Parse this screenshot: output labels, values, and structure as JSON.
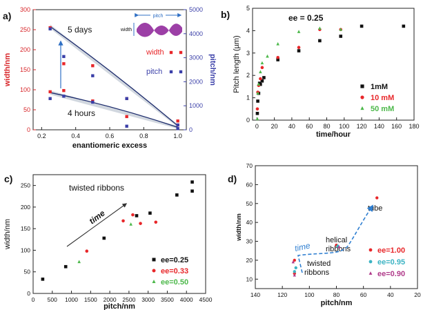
{
  "panels": [
    {
      "panel_label": "a)",
      "annotations": {
        "top_text": "5 days",
        "bottom_text": "4 hours",
        "legend_pitch": "pitch",
        "legend_width": "width"
      },
      "chart_data": {
        "type": "scatter",
        "xlabel": "enantiomeric excess",
        "ylabel": "width/nm",
        "ylabel_right": "pitch/nm",
        "xlim": [
          0.15,
          1.05
        ],
        "ylim": [
          0,
          300
        ],
        "ylim_right": [
          0,
          5000
        ],
        "xticks": [
          "0.2",
          "0.4",
          "0.6",
          "0.8",
          "1.0"
        ],
        "yticks": [
          "0",
          "50",
          "100",
          "150",
          "200",
          "250",
          "300"
        ],
        "yticks_right": [
          "0",
          "1000",
          "2000",
          "3000",
          "4000",
          "5000"
        ],
        "legend_position": "middle-right",
        "series": [
          {
            "name": "width",
            "axis": "left",
            "color": "#e8272a",
            "x": [
              0.25,
              0.25,
              0.33,
              0.33,
              0.5,
              0.5,
              0.7,
              0.7,
              1.0,
              1.0
            ],
            "y": [
              255,
              95,
              165,
              98,
              160,
              72,
              78,
              33,
              22,
              12
            ]
          },
          {
            "name": "pitch",
            "axis": "right",
            "color": "#3a3fa8",
            "x": [
              0.25,
              0.25,
              0.33,
              0.33,
              0.5,
              0.5,
              0.7,
              0.7,
              1.0,
              1.0
            ],
            "y": [
              4200,
              1300,
              3050,
              1400,
              2250,
              1150,
              1300,
              150,
              200,
              50
            ]
          }
        ],
        "trendlines": [
          {
            "axis": "left",
            "color": "#1b2a6b",
            "x": [
              0.25,
              1.0
            ],
            "y": [
              258,
              10
            ]
          },
          {
            "axis": "left",
            "color": "#1b2a6b",
            "x": [
              0.25,
              1.0
            ],
            "y": [
              93,
              6
            ]
          }
        ]
      }
    },
    {
      "panel_label": "b)",
      "annotations": {
        "ee_label": "ee = 0.25"
      },
      "chart_data": {
        "type": "scatter",
        "xlabel": "time/hour",
        "ylabel": "Pitch length (µm)",
        "xlim": [
          -5,
          180
        ],
        "ylim": [
          0,
          5
        ],
        "xticks": [
          "0",
          "20",
          "40",
          "60",
          "80",
          "100",
          "120",
          "140",
          "160",
          "180"
        ],
        "yticks": [
          "0",
          "1",
          "2",
          "3",
          "4",
          "5"
        ],
        "legend_position": "bottom-right",
        "series": [
          {
            "name": "1mM",
            "marker": "square",
            "color": "#111111",
            "x": [
              0.5,
              1,
              2,
              3,
              4,
              6,
              8,
              24,
              48,
              72,
              96,
              120,
              168
            ],
            "y": [
              0.3,
              0.85,
              1.2,
              1.65,
              1.6,
              1.75,
              1.9,
              2.7,
              3.1,
              3.55,
              3.75,
              4.2,
              4.2
            ]
          },
          {
            "name": "10 mM",
            "marker": "circle",
            "color": "#e8272a",
            "x": [
              0.5,
              1,
              2,
              4,
              6,
              24,
              48,
              72,
              96
            ],
            "y": [
              0.5,
              1.25,
              1.55,
              1.85,
              2.35,
              2.8,
              3.25,
              4.05,
              4.05
            ]
          },
          {
            "name": "50 mM",
            "marker": "triangle",
            "color": "#4cb84a",
            "x": [
              0.5,
              1,
              2,
              4,
              6,
              12,
              24,
              48,
              72,
              96
            ],
            "y": [
              0.05,
              1.2,
              1.6,
              2.15,
              2.55,
              2.85,
              3.4,
              3.95,
              4.1,
              4.05
            ]
          }
        ]
      }
    },
    {
      "panel_label": "c)",
      "annotations": {
        "top_text": "twisted ribbons",
        "arrow_text": "time"
      },
      "chart_data": {
        "type": "scatter",
        "xlabel": "pitch/nm",
        "ylabel": "width/nm",
        "xlim": [
          0,
          4500
        ],
        "ylim": [
          0,
          275
        ],
        "xticks": [
          "0",
          "500",
          "1000",
          "1500",
          "2000",
          "2500",
          "3000",
          "3500",
          "4000",
          "4500"
        ],
        "yticks": [
          "0",
          "50",
          "100",
          "150",
          "200",
          "250"
        ],
        "legend_position": "bottom-right",
        "series": [
          {
            "name": "ee=0.25",
            "marker": "square",
            "color": "#111111",
            "x": [
              250,
              850,
              1850,
              2700,
              3050,
              3750,
              4150,
              4150
            ],
            "y": [
              33,
              62,
              128,
              180,
              186,
              228,
              258,
              237
            ]
          },
          {
            "name": "ee=0.33",
            "marker": "circle",
            "color": "#e8272a",
            "x": [
              1400,
              2350,
              2600,
              2800,
              3200
            ],
            "y": [
              98,
              168,
              182,
              162,
              165
            ]
          },
          {
            "name": "ee=0.50",
            "marker": "triangle",
            "color": "#4cb84a",
            "x": [
              1200,
              2550
            ],
            "y": [
              73,
              160
            ]
          }
        ]
      }
    },
    {
      "panel_label": "d)",
      "annotations": {
        "label_tube": "tube",
        "label_helical_1": "helical",
        "label_helical_2": "ribbons",
        "label_twisted_1": "twisted",
        "label_twisted_2": "ribbons",
        "arrow_text": "time"
      },
      "chart_data": {
        "type": "scatter",
        "xlabel": "pitch/nm",
        "ylabel": "width/nm",
        "xlim": [
          140,
          20
        ],
        "ylim": [
          5,
          70
        ],
        "xticks": [
          "140",
          "120",
          "100",
          "80",
          "60",
          "40",
          "20"
        ],
        "yticks": [
          "10",
          "20",
          "30",
          "40",
          "50",
          "60",
          "70"
        ],
        "legend_position": "bottom-right",
        "series": [
          {
            "name": "ee=1.00",
            "marker": "circle",
            "color": "#e8272a",
            "x": [
              50,
              80,
              111,
              111
            ],
            "y": [
              53,
              28,
              20,
              13
            ]
          },
          {
            "name": "ee=0.95",
            "marker": "circle",
            "color": "#3bb3c3",
            "x": [
              79,
              110,
              111
            ],
            "y": [
              27.5,
              16,
              14
            ]
          },
          {
            "name": "ee=0.90",
            "marker": "triangle",
            "color": "#b03a8a",
            "x": [
              78,
              112,
              111
            ],
            "y": [
              27,
              19,
              12
            ]
          }
        ]
      }
    }
  ]
}
